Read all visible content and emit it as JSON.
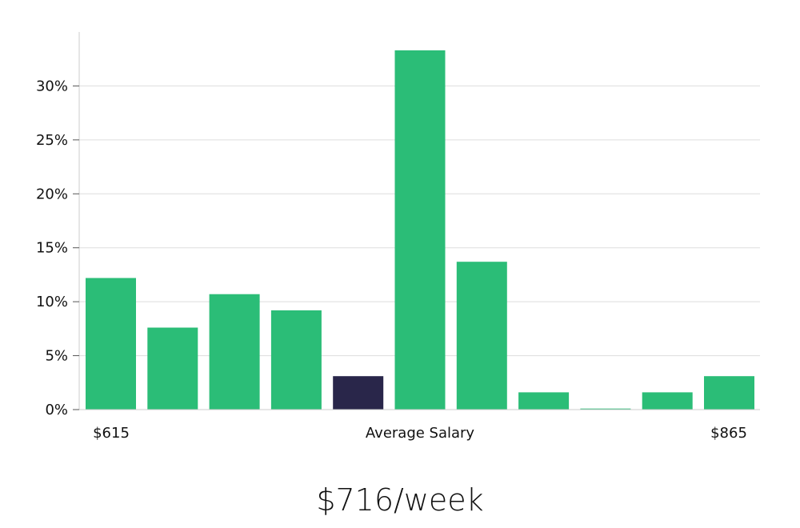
{
  "chart_data": {
    "type": "bar",
    "values": [
      12.2,
      7.6,
      10.7,
      9.2,
      3.1,
      33.3,
      13.7,
      1.6,
      0.1,
      1.6,
      3.1
    ],
    "highlight_index": 4,
    "colors": {
      "bar": "#2bbd77",
      "highlight": "#29264a",
      "grid": "#dddddd",
      "axis": "#cccccc"
    },
    "ylim": [
      0,
      35
    ],
    "yticks": [
      0,
      5,
      10,
      15,
      20,
      25,
      30
    ],
    "ytick_labels": [
      "0%",
      "5%",
      "10%",
      "15%",
      "20%",
      "25%",
      "30%"
    ],
    "x_labels": {
      "left": "$615",
      "center": "Average Salary",
      "right": "$865"
    },
    "grid": true,
    "legend": "none"
  },
  "caption": "$716/week"
}
